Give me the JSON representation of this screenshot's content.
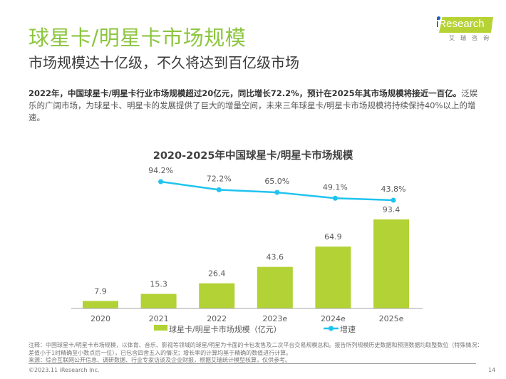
{
  "header": {
    "title": "球星卡/明星卡市场规模",
    "subtitle": "市场规模达十亿级，不久将达到百亿级市场",
    "logo": {
      "brand": "iResearch",
      "brand_i": "i",
      "brand_rest": "Research",
      "cn": "艾瑞咨询"
    }
  },
  "summary": {
    "bold": "2022年，中国球星卡/明星卡行业市场规模超过20亿元，同比增长72.2%，预计在2025年其市场规模将接近一百亿。",
    "normal": "泛娱乐的广阔市场，为球星卡、明星卡的发展提供了巨大的增量空间，未来三年球星卡/明星卡市场规模将持续保持40%以上的增速。"
  },
  "colors": {
    "title_green": "#8cc63f",
    "bar_green": "#b2d235",
    "line_blue": "#1fc3ef",
    "axis_gray": "#999999",
    "label_gray": "#595959"
  },
  "chart_data": {
    "type": "bar+line",
    "title": "2020-2025年中国球星卡/明星卡市场规模",
    "categories": [
      "2020",
      "2021",
      "2022",
      "2023e",
      "2024e",
      "2025e"
    ],
    "series": [
      {
        "name": "球星卡/明星卡市场规模（亿元）",
        "type": "bar",
        "values": [
          7.9,
          15.3,
          26.4,
          43.6,
          64.9,
          93.4
        ],
        "labels": [
          "7.9",
          "15.3",
          "26.4",
          "43.6",
          "64.9",
          "93.4"
        ]
      },
      {
        "name": "增速",
        "type": "line",
        "values": [
          null,
          94.2,
          72.2,
          65.0,
          49.1,
          43.8
        ],
        "labels": [
          "",
          "94.2%",
          "72.2%",
          "65.0%",
          "49.1%",
          "43.8%"
        ]
      }
    ],
    "xlabel": "",
    "ylabel": "",
    "legend": "bottom",
    "grid": false
  },
  "footer": {
    "notes": [
      "注释：中国球星卡/明星卡市场规模，以体育、音乐、影视等领域的球星/明星为卡面的卡包发售及二次平台交易规模总和。报告所列规模历史数据和预测数据均取整数位（特殊情况：",
      "差值小于1时精确至小数点后一位），已包含四舍五入的情况；增长率的计算均基于精确的数值进行计算。",
      "来源：综合互联网公开信息、调研数据、行业专家访谈及企业财报，根据艾瑞统计模型核算，仅供参考。"
    ],
    "copyright": "©2023.11 iResearch Inc.",
    "page_number": "14"
  }
}
